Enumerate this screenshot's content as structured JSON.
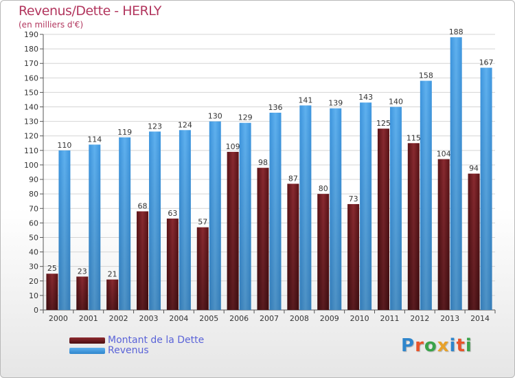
{
  "title": "Revenus/Dette - HERLY",
  "subtitle": "(en milliers d'€)",
  "colors": {
    "dette": "#7a1f24",
    "revenus": "#4fa3e6",
    "title": "#b2365e",
    "legend_text": "#5a63d8"
  },
  "legend": [
    {
      "label": "Montant de la Dette",
      "color": "#7a1f24"
    },
    {
      "label": "Revenus",
      "color": "#4fa3e6"
    }
  ],
  "logo": {
    "text": "Proxiti"
  },
  "chart_data": {
    "type": "bar",
    "categories": [
      "2000",
      "2001",
      "2002",
      "2003",
      "2004",
      "2005",
      "2006",
      "2007",
      "2008",
      "2009",
      "2010",
      "2011",
      "2012",
      "2013",
      "2014"
    ],
    "series": [
      {
        "name": "Montant de la Dette",
        "values": [
          25,
          23,
          21,
          68,
          63,
          57,
          109,
          98,
          87,
          80,
          73,
          125,
          115,
          104,
          94
        ]
      },
      {
        "name": "Revenus",
        "values": [
          110,
          114,
          119,
          123,
          124,
          130,
          129,
          136,
          141,
          139,
          143,
          140,
          158,
          188,
          167
        ]
      }
    ],
    "ylim": [
      0,
      190
    ],
    "ytick_step": 10,
    "grid": true,
    "legend_position": "bottom-left"
  }
}
